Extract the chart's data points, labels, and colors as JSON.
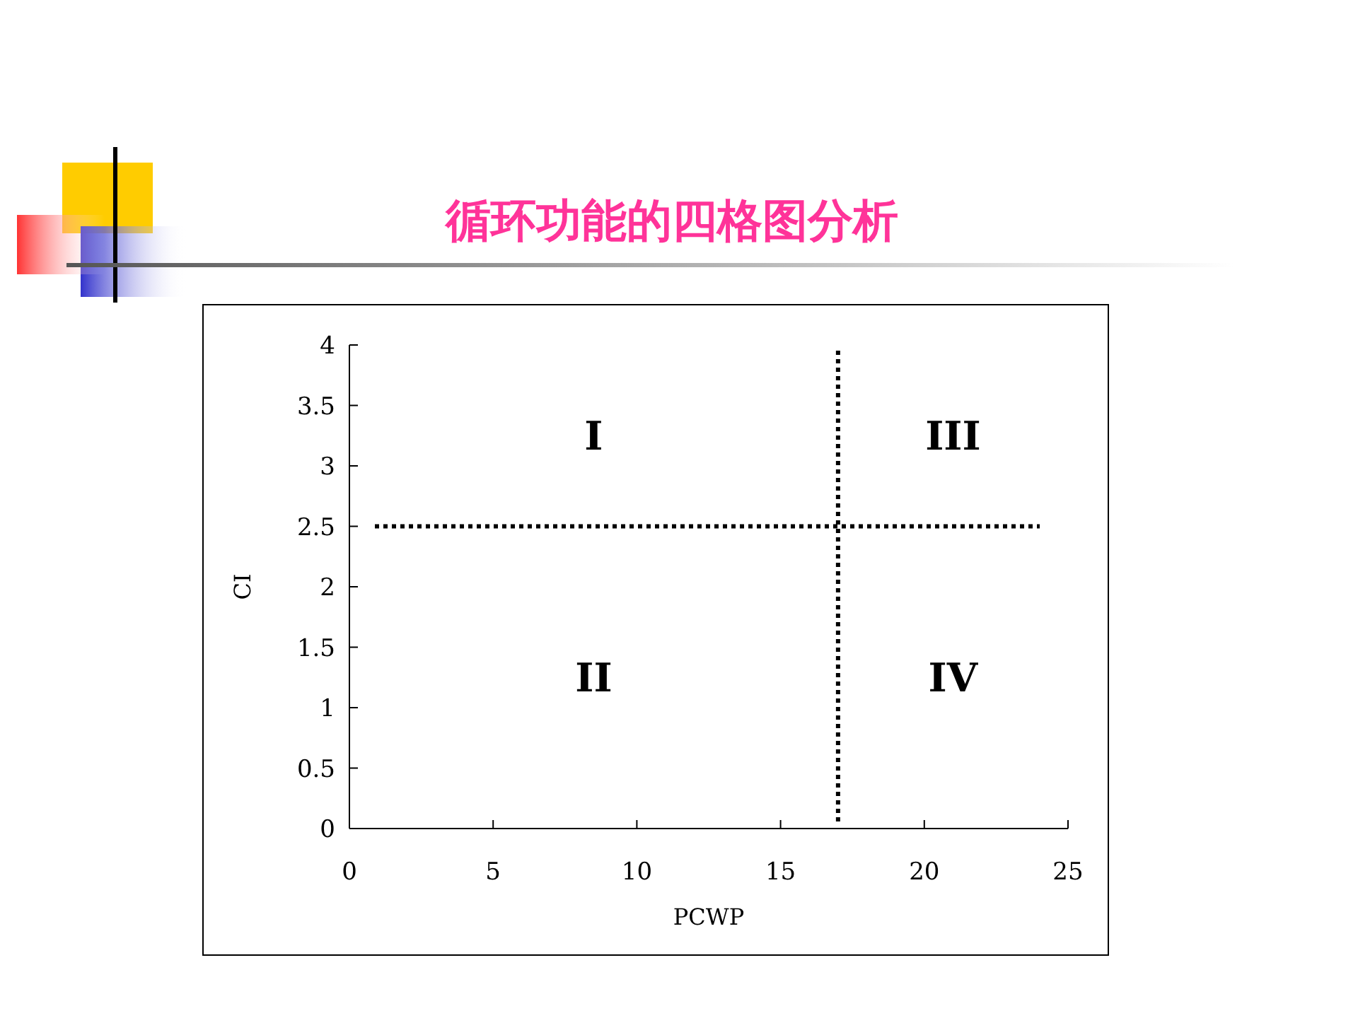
{
  "chart_data": {
    "type": "scatter",
    "title": "循环功能的四格图分析",
    "xlabel": "PCWP",
    "ylabel": "CI",
    "xlim": [
      0,
      25
    ],
    "xticks": [
      0,
      5,
      10,
      15,
      20,
      25
    ],
    "ylim": [
      0,
      4
    ],
    "yticks": [
      0,
      0.5,
      1,
      1.5,
      2,
      2.5,
      3,
      3.5,
      4
    ],
    "ref_lines": [
      {
        "axis": "x",
        "value": 17,
        "line_style": "dotted",
        "color": "#000000"
      },
      {
        "axis": "y",
        "value": 2.5,
        "line_style": "dotted",
        "color": "#000000"
      }
    ],
    "annotations": [
      "I",
      "III",
      "II",
      "IV"
    ]
  }
}
